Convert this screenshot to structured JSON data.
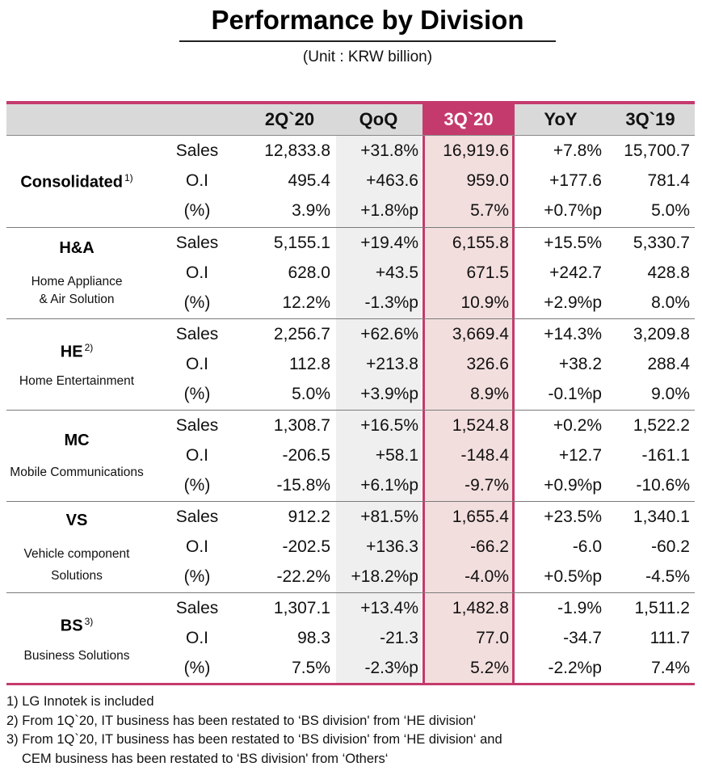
{
  "title": "Performance by Division",
  "unit": "(Unit : KRW billion)",
  "columns": [
    "2Q`20",
    "QoQ",
    "3Q`20",
    "YoY",
    "3Q`19"
  ],
  "colors": {
    "accent": "#c53a6d",
    "highlight_column_bg": "#f3dede",
    "header_bg": "#d9d9d9",
    "qoq_bg": "#efefef"
  },
  "divisions": [
    {
      "name": "Consolidated",
      "sup": "1)",
      "subtitle": "",
      "rows": [
        {
          "label": "Sales",
          "values": [
            "12,833.8",
            "+31.8%",
            "16,919.6",
            "+7.8%",
            "15,700.7"
          ]
        },
        {
          "label": "O.I",
          "values": [
            "495.4",
            "+463.6",
            "959.0",
            "+177.6",
            "781.4"
          ]
        },
        {
          "label": "(%)",
          "values": [
            "3.9%",
            "+1.8%p",
            "5.7%",
            "+0.7%p",
            "5.0%"
          ]
        }
      ]
    },
    {
      "name": "H&A",
      "sup": "",
      "subtitle": "Home Appliance\n& Air Solution",
      "subtitle_lines": [
        "Home Appliance",
        "& Air Solution"
      ],
      "rows": [
        {
          "label": "Sales",
          "values": [
            "5,155.1",
            "+19.4%",
            "6,155.8",
            "+15.5%",
            "5,330.7"
          ]
        },
        {
          "label": "O.I",
          "values": [
            "628.0",
            "+43.5",
            "671.5",
            "+242.7",
            "428.8"
          ]
        },
        {
          "label": "(%)",
          "values": [
            "12.2%",
            "-1.3%p",
            "10.9%",
            "+2.9%p",
            "8.0%"
          ]
        }
      ]
    },
    {
      "name": "HE",
      "sup": "2)",
      "subtitle_lines": [
        "Home Entertainment"
      ],
      "rows": [
        {
          "label": "Sales",
          "values": [
            "2,256.7",
            "+62.6%",
            "3,669.4",
            "+14.3%",
            "3,209.8"
          ]
        },
        {
          "label": "O.I",
          "values": [
            "112.8",
            "+213.8",
            "326.6",
            "+38.2",
            "288.4"
          ]
        },
        {
          "label": "(%)",
          "values": [
            "5.0%",
            "+3.9%p",
            "8.9%",
            "-0.1%p",
            "9.0%"
          ]
        }
      ]
    },
    {
      "name": "MC",
      "sup": "",
      "subtitle_lines": [
        "Mobile Communications"
      ],
      "rows": [
        {
          "label": "Sales",
          "values": [
            "1,308.7",
            "+16.5%",
            "1,524.8",
            "+0.2%",
            "1,522.2"
          ]
        },
        {
          "label": "O.I",
          "values": [
            "-206.5",
            "+58.1",
            "-148.4",
            "+12.7",
            "-161.1"
          ]
        },
        {
          "label": "(%)",
          "values": [
            "-15.8%",
            "+6.1%p",
            "-9.7%",
            "+0.9%p",
            "-10.6%"
          ]
        }
      ]
    },
    {
      "name": "VS",
      "sup": "",
      "subtitle_lines": [
        "Vehicle component",
        "Solutions"
      ],
      "rows": [
        {
          "label": "Sales",
          "values": [
            "912.2",
            "+81.5%",
            "1,655.4",
            "+23.5%",
            "1,340.1"
          ]
        },
        {
          "label": "O.I",
          "values": [
            "-202.5",
            "+136.3",
            "-66.2",
            "-6.0",
            "-60.2"
          ]
        },
        {
          "label": "(%)",
          "values": [
            "-22.2%",
            "+18.2%p",
            "-4.0%",
            "+0.5%p",
            "-4.5%"
          ]
        }
      ]
    },
    {
      "name": "BS",
      "sup": "3)",
      "subtitle_lines": [
        "Business Solutions"
      ],
      "rows": [
        {
          "label": "Sales",
          "values": [
            "1,307.1",
            "+13.4%",
            "1,482.8",
            "-1.9%",
            "1,511.2"
          ]
        },
        {
          "label": "O.I",
          "values": [
            "98.3",
            "-21.3",
            "77.0",
            "-34.7",
            "111.7"
          ]
        },
        {
          "label": "(%)",
          "values": [
            "7.5%",
            "-2.3%p",
            "5.2%",
            "-2.2%p",
            "7.4%"
          ]
        }
      ]
    }
  ],
  "footnotes": [
    "1) LG Innotek is included",
    "2) From 1Q`20, IT business has been restated to ‘BS division' from ‘HE division'",
    "3) From 1Q`20, IT business has been restated to ‘BS division' from ‘HE division‘ and",
    "CEM business has been restated to ‘BS division' from ‘Others‘"
  ]
}
